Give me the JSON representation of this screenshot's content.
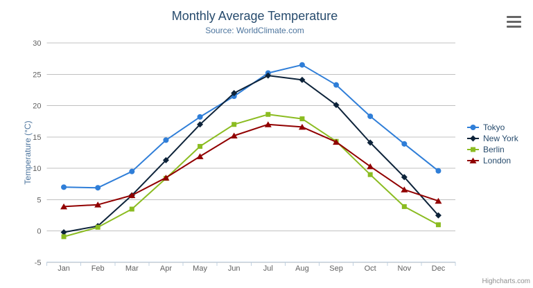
{
  "chart_data": {
    "type": "line",
    "title": "Monthly Average Temperature",
    "subtitle": "Source: WorldClimate.com",
    "categories": [
      "Jan",
      "Feb",
      "Mar",
      "Apr",
      "May",
      "Jun",
      "Jul",
      "Aug",
      "Sep",
      "Oct",
      "Nov",
      "Dec"
    ],
    "xlabel": "",
    "ylabel": "Temperature (°C)",
    "ylim": [
      -5,
      30
    ],
    "tick_interval": 5,
    "grid": true,
    "legend_position": "right",
    "series": [
      {
        "name": "Tokyo",
        "color": "#2f7ed8",
        "marker": "circle",
        "values": [
          7.0,
          6.9,
          9.5,
          14.5,
          18.2,
          21.5,
          25.2,
          26.5,
          23.3,
          18.3,
          13.9,
          9.6
        ]
      },
      {
        "name": "New York",
        "color": "#0d233a",
        "marker": "diamond",
        "values": [
          -0.2,
          0.8,
          5.7,
          11.3,
          17.0,
          22.0,
          24.8,
          24.1,
          20.1,
          14.1,
          8.6,
          2.5
        ]
      },
      {
        "name": "Berlin",
        "color": "#8bbc21",
        "marker": "square",
        "values": [
          -0.9,
          0.6,
          3.5,
          8.4,
          13.5,
          17.0,
          18.6,
          17.9,
          14.3,
          9.0,
          3.9,
          1.0
        ]
      },
      {
        "name": "London",
        "color": "#910000",
        "marker": "triangle",
        "values": [
          3.9,
          4.2,
          5.7,
          8.5,
          11.9,
          15.2,
          17.0,
          16.6,
          14.2,
          10.3,
          6.6,
          4.8
        ]
      }
    ]
  },
  "credits": {
    "label": "Highcharts.com"
  },
  "icons": {
    "context_menu": "hamburger-menu-icon"
  },
  "style": {
    "title_color": "#274b6d",
    "subtitle_color": "#4d759e",
    "axis_label_color": "#606060",
    "axis_title_color": "#4d759e",
    "grid_color": "#C0C0C0",
    "axis_line_color": "#C0D0E0",
    "legend_text_color": "#274b6d",
    "credits_color": "#909090",
    "menu_icon_color": "#666666"
  }
}
